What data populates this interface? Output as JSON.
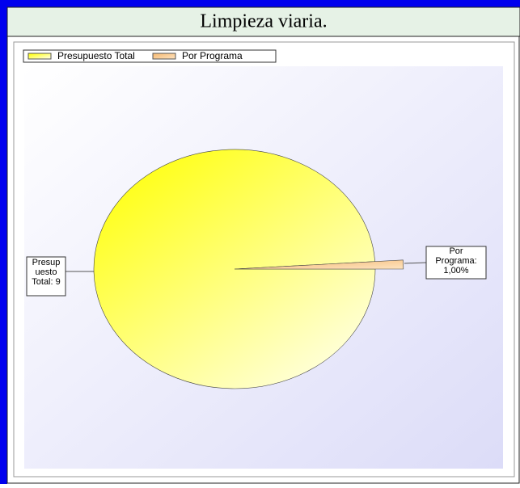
{
  "header": {
    "title": "Limpieza viaria."
  },
  "chart_data": {
    "type": "pie",
    "categories": [
      "Presupuesto Total",
      "Por Programa"
    ],
    "values": [
      99,
      1
    ],
    "colors": [
      "#ffff33",
      "#f7c98e"
    ],
    "data_labels": [
      [
        "Presup",
        "uesto",
        "Total: 9"
      ],
      [
        "Por",
        "Programa:",
        "1,00%"
      ]
    ],
    "legend": "top-left"
  }
}
